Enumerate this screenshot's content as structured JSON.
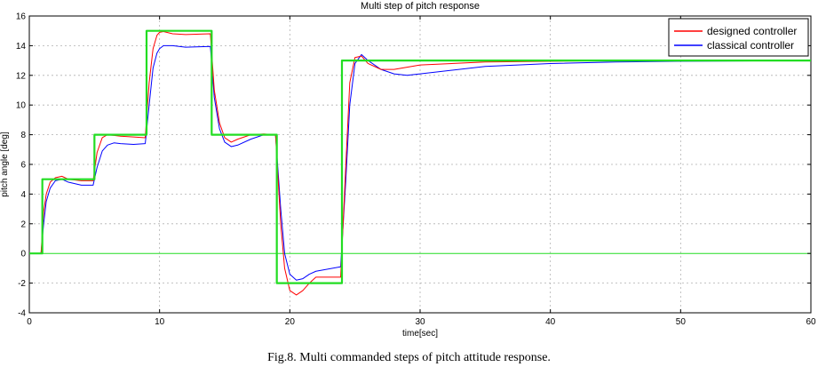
{
  "caption": "Fig.8. Multi commanded steps of pitch attitude response.",
  "chart_data": {
    "type": "line",
    "title": "Multi step of pitch response",
    "xlabel": "time[sec]",
    "ylabel": "pitch angle [deg]",
    "xlim": [
      0,
      60
    ],
    "ylim": [
      -4,
      16
    ],
    "xticks": [
      0,
      10,
      20,
      30,
      40,
      50,
      60
    ],
    "yticks": [
      -4,
      -2,
      0,
      2,
      4,
      6,
      8,
      10,
      12,
      14,
      16
    ],
    "grid": true,
    "legend_position": "top-right",
    "colors": {
      "command": "#22dd22",
      "designed": "#ff0000",
      "classical": "#0000ff",
      "zero_line": "#22dd22",
      "grid": "#b0b0b0"
    },
    "series": [
      {
        "key": "command",
        "legend": false,
        "x": [
          0,
          1,
          1,
          5,
          5,
          9,
          9,
          14,
          14,
          19,
          19,
          24,
          24,
          60
        ],
        "y": [
          0,
          0,
          5,
          5,
          8,
          8,
          15,
          15,
          8,
          8,
          -2,
          -2,
          13,
          13
        ]
      },
      {
        "key": "designed",
        "name": "designed controller",
        "legend": true,
        "x": [
          0,
          0.9,
          1.1,
          1.3,
          1.6,
          2.0,
          2.5,
          3.0,
          4.0,
          4.9,
          5.2,
          5.6,
          6.0,
          6.5,
          7.0,
          8.0,
          8.9,
          9.2,
          9.5,
          9.8,
          10.0,
          10.3,
          11.0,
          12.0,
          13.9,
          14.2,
          14.6,
          15.0,
          15.5,
          16.0,
          17.0,
          18.0,
          18.9,
          19.3,
          19.6,
          20.0,
          20.5,
          21.0,
          21.5,
          22.0,
          23.9,
          24.3,
          24.6,
          25.0,
          25.5,
          26.0,
          27.0,
          28.0,
          30.0,
          35.0,
          40.0,
          45.0,
          50.0,
          60.0
        ],
        "y": [
          0,
          0,
          2.8,
          4.0,
          4.8,
          5.1,
          5.2,
          5.0,
          4.9,
          4.9,
          6.8,
          7.8,
          8.0,
          7.95,
          7.9,
          7.85,
          7.8,
          11.5,
          13.8,
          14.7,
          14.9,
          14.95,
          14.8,
          14.75,
          14.8,
          11.0,
          8.8,
          7.8,
          7.5,
          7.7,
          8.0,
          8.05,
          8.0,
          2.0,
          -1.0,
          -2.5,
          -2.8,
          -2.5,
          -2.0,
          -1.6,
          -1.6,
          6.0,
          11.5,
          13.2,
          13.3,
          12.8,
          12.4,
          12.4,
          12.7,
          12.9,
          12.95,
          13.0,
          13.0,
          13.0
        ]
      },
      {
        "key": "classical",
        "name": "classical controller",
        "legend": true,
        "x": [
          0,
          0.9,
          1.1,
          1.3,
          1.6,
          2.0,
          2.5,
          3.0,
          4.0,
          4.9,
          5.2,
          5.6,
          6.0,
          6.5,
          7.0,
          8.0,
          8.9,
          9.2,
          9.5,
          9.8,
          10.0,
          10.3,
          11.0,
          12.0,
          13.9,
          14.2,
          14.6,
          15.0,
          15.5,
          16.0,
          17.0,
          18.0,
          18.9,
          19.3,
          19.6,
          20.0,
          20.5,
          21.0,
          21.5,
          22.0,
          23.9,
          24.3,
          24.6,
          25.0,
          25.5,
          26.0,
          27.0,
          28.0,
          29.0,
          30.0,
          35.0,
          40.0,
          45.0,
          50.0,
          60.0
        ],
        "y": [
          0,
          0,
          2.0,
          3.5,
          4.4,
          4.9,
          5.0,
          4.8,
          4.6,
          4.6,
          5.8,
          6.9,
          7.3,
          7.45,
          7.4,
          7.35,
          7.4,
          10.0,
          12.5,
          13.5,
          13.8,
          14.0,
          14.0,
          13.9,
          13.95,
          10.5,
          8.4,
          7.5,
          7.2,
          7.3,
          7.7,
          8.0,
          8.0,
          3.0,
          0.0,
          -1.4,
          -1.8,
          -1.7,
          -1.4,
          -1.2,
          -0.9,
          5.0,
          10.0,
          12.8,
          13.4,
          13.0,
          12.4,
          12.1,
          12.0,
          12.1,
          12.6,
          12.8,
          12.9,
          12.95,
          13.0
        ]
      }
    ]
  }
}
